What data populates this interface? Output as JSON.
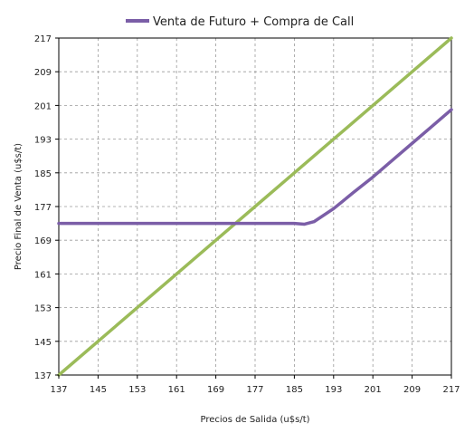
{
  "chart_data": {
    "type": "line",
    "title": "",
    "xlabel": "Precios de Salida (u$s/t)",
    "ylabel": "Precio Final de Venta (u$s/t)",
    "x_ticks": [
      "137",
      "145",
      "153",
      "161",
      "169",
      "177",
      "185",
      "193",
      "201",
      "209",
      "217"
    ],
    "y_ticks": [
      "137",
      "145",
      "153",
      "161",
      "169",
      "177",
      "185",
      "193",
      "201",
      "209",
      "217"
    ],
    "xlim": [
      137,
      217
    ],
    "ylim": [
      137,
      217
    ],
    "grid": true,
    "legend_position": "top-center",
    "series": [
      {
        "name": "Venta de Futuro + Compra de Call",
        "color": "#7b5ea7",
        "x": [
          137,
          145,
          153,
          161,
          169,
          177,
          185,
          187,
          189,
          193,
          197,
          201,
          205,
          209,
          213,
          217
        ],
        "y": [
          173,
          173,
          173,
          173,
          173,
          173,
          173,
          172.8,
          173.4,
          176.5,
          180.3,
          184,
          188,
          192,
          196,
          200
        ]
      },
      {
        "name": "",
        "color": "#9bbb59",
        "x": [
          137,
          145,
          153,
          161,
          169,
          177,
          185,
          193,
          201,
          209,
          217
        ],
        "y": [
          137,
          145,
          153,
          161,
          169,
          177,
          185,
          193,
          201,
          209,
          217
        ]
      }
    ]
  }
}
